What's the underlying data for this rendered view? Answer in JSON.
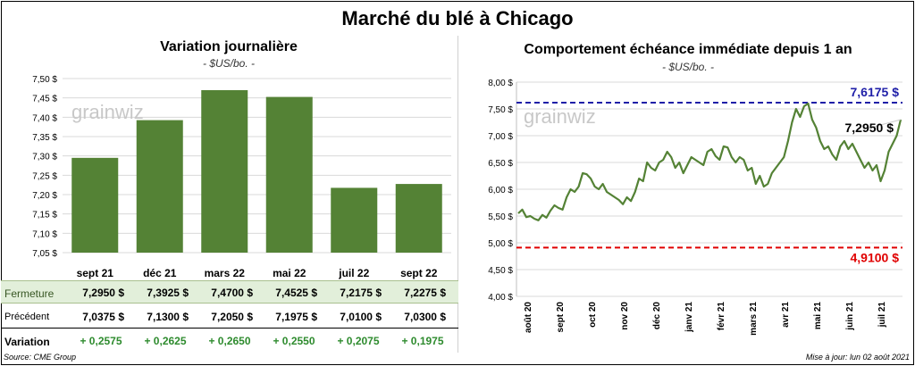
{
  "main_title": "Marché du blé à Chicago",
  "watermark": "grainwiz",
  "left_panel": {
    "title": "Variation  journalière",
    "subtitle": "- $US/bo. -"
  },
  "right_panel": {
    "title": "Comportement  échéance immédiate depuis 1 an",
    "subtitle": "- $US/bo. -"
  },
  "table": {
    "rows": [
      {
        "label": "Fermeture",
        "values": [
          "7,2950  $",
          "7,3925  $",
          "7,4700  $",
          "7,4525  $",
          "7,2175  $",
          "7,2275  $"
        ]
      },
      {
        "label": "Précédent",
        "values": [
          "7,0375  $",
          "7,1300  $",
          "7,2050  $",
          "7,1975  $",
          "7,0100  $",
          "7,0300  $"
        ]
      },
      {
        "label": "Variation",
        "values": [
          "+ 0,2575",
          "+ 0,2625",
          "+ 0,2650",
          "+ 0,2550",
          "+ 0,2075",
          "+ 0,1975"
        ]
      }
    ]
  },
  "footer": {
    "source": "Source: CME Group",
    "update": "Mise à jour: lun 02 août 2021"
  },
  "colors": {
    "bar": "#548235",
    "line": "#548235",
    "high_line": "#1f1fa8",
    "low_line": "#e00000",
    "ferm_bg": "#e2efda"
  },
  "chart_data": [
    {
      "type": "bar",
      "categories": [
        "sept 21",
        "déc 21",
        "mars 22",
        "mai 22",
        "juil 22",
        "sept 22"
      ],
      "values": [
        7.295,
        7.3925,
        7.47,
        7.4525,
        7.2175,
        7.2275
      ],
      "ylim": [
        7.05,
        7.5
      ],
      "yticks": [
        "7,05 $",
        "7,10 $",
        "7,15 $",
        "7,20 $",
        "7,25 $",
        "7,30 $",
        "7,35 $",
        "7,40 $",
        "7,45 $",
        "7,50 $"
      ],
      "grid": true
    },
    {
      "type": "line",
      "ylim": [
        4.0,
        8.0
      ],
      "yticks": [
        "4,00 $",
        "4,50 $",
        "5,00 $",
        "5,50 $",
        "6,00 $",
        "6,50 $",
        "7,00 $",
        "7,50 $",
        "8,00 $"
      ],
      "xlabels": [
        "août 20",
        "sept 20",
        "oct 20",
        "nov 20",
        "déc 20",
        "janv 21",
        "févr 21",
        "mars 21",
        "avr 21",
        "mai 21",
        "juin 21",
        "juil 21"
      ],
      "series": [
        {
          "values": [
            5.55,
            5.62,
            5.48,
            5.5,
            5.45,
            5.42,
            5.52,
            5.47,
            5.6,
            5.7,
            5.65,
            5.62,
            5.85,
            6.0,
            5.95,
            6.05,
            6.3,
            6.28,
            6.2,
            6.05,
            6.0,
            6.1,
            5.95,
            5.9,
            5.85,
            5.8,
            5.72,
            5.85,
            5.78,
            5.95,
            6.2,
            6.15,
            6.5,
            6.4,
            6.35,
            6.5,
            6.55,
            6.7,
            6.6,
            6.4,
            6.5,
            6.3,
            6.45,
            6.6,
            6.55,
            6.5,
            6.45,
            6.7,
            6.75,
            6.62,
            6.55,
            6.8,
            6.78,
            6.6,
            6.5,
            6.6,
            6.55,
            6.35,
            6.4,
            6.1,
            6.25,
            6.05,
            6.1,
            6.3,
            6.4,
            6.5,
            6.6,
            6.9,
            7.25,
            7.5,
            7.35,
            7.55,
            7.6,
            7.3,
            7.15,
            6.9,
            6.75,
            6.8,
            6.65,
            6.55,
            6.8,
            6.9,
            6.75,
            6.85,
            6.7,
            6.55,
            6.4,
            6.5,
            6.35,
            6.45,
            6.15,
            6.35,
            6.7,
            6.85,
            7.0,
            7.3
          ]
        }
      ],
      "reference_lines": [
        {
          "value": 7.6175,
          "label": "7,6175  $"
        },
        {
          "value": 4.91,
          "label": "4,9100  $"
        }
      ],
      "last_value_label": "7,2950 $",
      "grid": true
    }
  ]
}
